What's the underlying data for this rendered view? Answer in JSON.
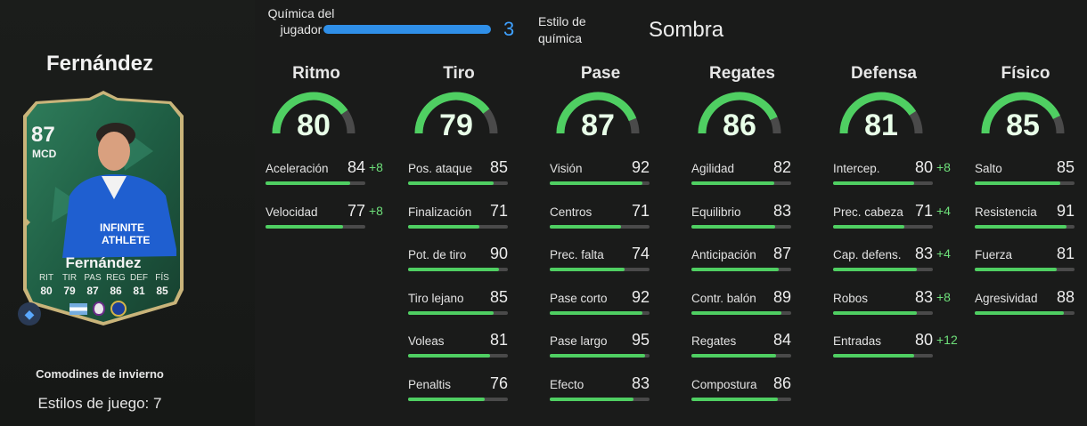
{
  "player": {
    "name": "Fernández",
    "card": {
      "rating": "87",
      "position": "MCD",
      "name": "Fernández",
      "stat_labels": [
        "RIT",
        "TIR",
        "PAS",
        "REG",
        "DEF",
        "FÍS"
      ],
      "stat_values": [
        "80",
        "79",
        "87",
        "86",
        "81",
        "85"
      ]
    },
    "promo": "Comodines de invierno",
    "playstyles": "Estilos de juego: 7"
  },
  "chemistry": {
    "label": "Química del jugador",
    "value": "3",
    "style_label": "Estilo de química",
    "style_value": "Sombra"
  },
  "colors": {
    "accent_green": "#4fcf62",
    "chem_blue": "#2f8fe8",
    "boost_green": "#6ee07a"
  },
  "categories": [
    {
      "title": "Ritmo",
      "value": 80,
      "attrs": [
        {
          "name": "Aceleración",
          "value": 84,
          "boost": "+8"
        },
        {
          "name": "Velocidad",
          "value": 77,
          "boost": "+8"
        }
      ]
    },
    {
      "title": "Tiro",
      "value": 79,
      "attrs": [
        {
          "name": "Pos. ataque",
          "value": 85
        },
        {
          "name": "Finalización",
          "value": 71
        },
        {
          "name": "Pot. de tiro",
          "value": 90
        },
        {
          "name": "Tiro lejano",
          "value": 85
        },
        {
          "name": "Voleas",
          "value": 81
        },
        {
          "name": "Penaltis",
          "value": 76
        }
      ]
    },
    {
      "title": "Pase",
      "value": 87,
      "attrs": [
        {
          "name": "Visión",
          "value": 92
        },
        {
          "name": "Centros",
          "value": 71
        },
        {
          "name": "Prec. falta",
          "value": 74
        },
        {
          "name": "Pase corto",
          "value": 92
        },
        {
          "name": "Pase largo",
          "value": 95
        },
        {
          "name": "Efecto",
          "value": 83
        }
      ]
    },
    {
      "title": "Regates",
      "value": 86,
      "attrs": [
        {
          "name": "Agilidad",
          "value": 82
        },
        {
          "name": "Equilibrio",
          "value": 83
        },
        {
          "name": "Anticipación",
          "value": 87
        },
        {
          "name": "Contr. balón",
          "value": 89
        },
        {
          "name": "Regates",
          "value": 84
        },
        {
          "name": "Compostura",
          "value": 86
        }
      ]
    },
    {
      "title": "Defensa",
      "value": 81,
      "attrs": [
        {
          "name": "Intercep.",
          "value": 80,
          "boost": "+8"
        },
        {
          "name": "Prec. cabeza",
          "value": 71,
          "boost": "+4"
        },
        {
          "name": "Cap. defens.",
          "value": 83,
          "boost": "+4"
        },
        {
          "name": "Robos",
          "value": 83,
          "boost": "+8"
        },
        {
          "name": "Entradas",
          "value": 80,
          "boost": "+12"
        }
      ]
    },
    {
      "title": "Físico",
      "value": 85,
      "attrs": [
        {
          "name": "Salto",
          "value": 85
        },
        {
          "name": "Resistencia",
          "value": 91
        },
        {
          "name": "Fuerza",
          "value": 81
        },
        {
          "name": "Agresividad",
          "value": 88
        }
      ]
    }
  ]
}
